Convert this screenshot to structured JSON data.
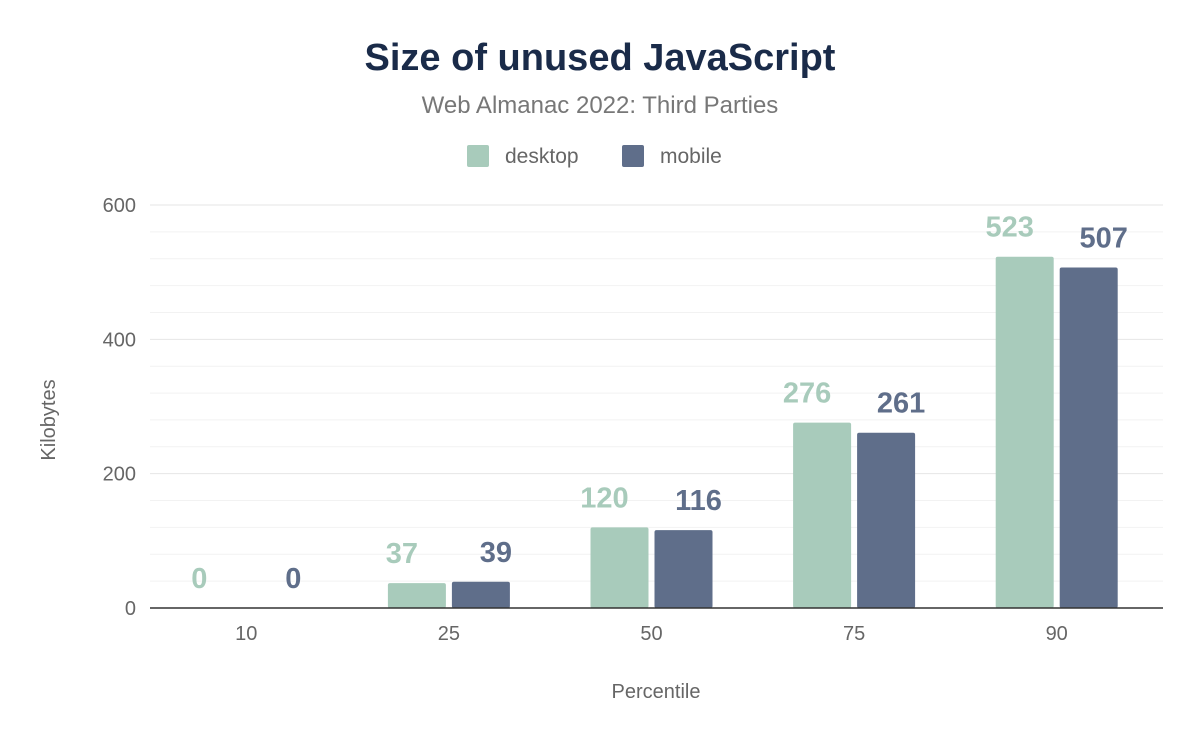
{
  "chart_data": {
    "type": "bar",
    "title": "Size of unused JavaScript",
    "subtitle": "Web Almanac 2022: Third Parties",
    "xlabel": "Percentile",
    "ylabel": "Kilobytes",
    "categories": [
      "10",
      "25",
      "50",
      "75",
      "90"
    ],
    "series": [
      {
        "name": "desktop",
        "color": "#a8cbbb",
        "values": [
          0,
          37,
          120,
          276,
          523
        ]
      },
      {
        "name": "mobile",
        "color": "#5f6e8a",
        "values": [
          0,
          39,
          116,
          261,
          507
        ]
      }
    ],
    "ylim": [
      0,
      600
    ],
    "yticks": [
      0,
      200,
      400,
      600
    ],
    "grid": true,
    "legend": "top-center",
    "title_color": "#1a2b49"
  }
}
